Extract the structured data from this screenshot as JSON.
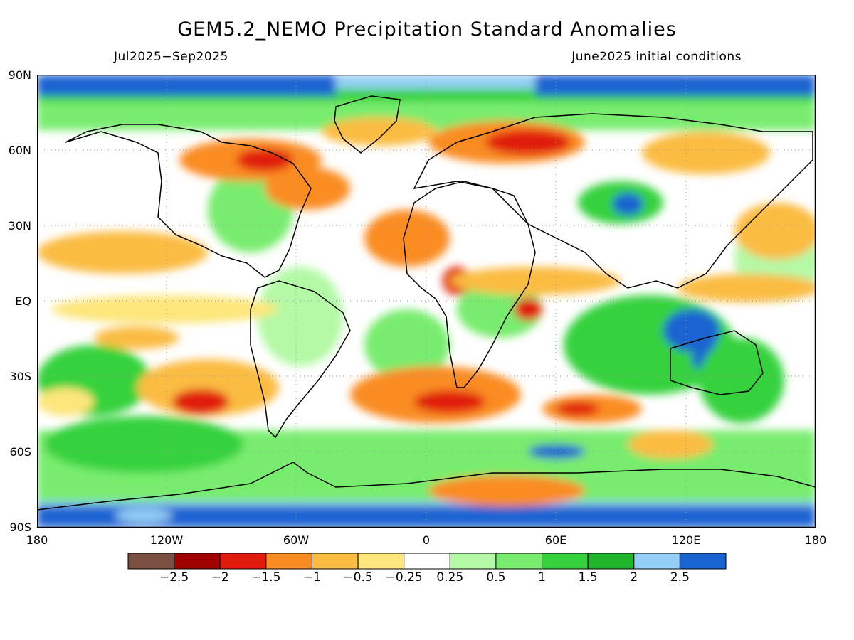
{
  "title": "GEM5.2_NEMO Precipitation Standard Anomalies",
  "period": "Jul2025−Sep2025",
  "init": "June2025 initial conditions",
  "lat_labels": [
    "90N",
    "60N",
    "30N",
    "EQ",
    "30S",
    "60S",
    "90S"
  ],
  "lon_labels": [
    "180",
    "120W",
    "60W",
    "0",
    "60E",
    "120E",
    "180"
  ],
  "colorbar": {
    "colors": [
      "#7a5043",
      "#a00000",
      "#e01c0e",
      "#fa8c22",
      "#fbbc42",
      "#fde67a",
      "#ffffff",
      "#b4f9a6",
      "#78ec6e",
      "#36d23e",
      "#1fb52b",
      "#93cff6",
      "#1a63d2"
    ],
    "labels": [
      "−2.5",
      "−2",
      "−1.5",
      "−1",
      "−0.5",
      "−0.25",
      "0.25",
      "0.5",
      "1",
      "1.5",
      "2",
      "2.5"
    ]
  }
}
